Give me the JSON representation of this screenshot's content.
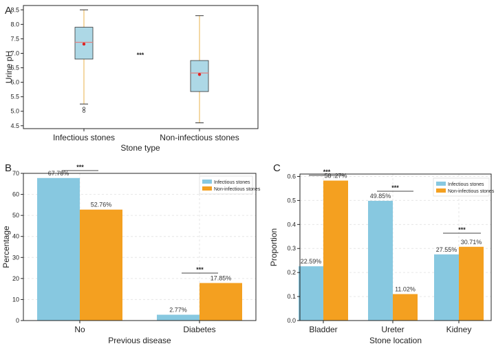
{
  "chart_data": [
    {
      "panel": "A",
      "type": "box",
      "xlabel": "Stone type",
      "ylabel": "Urine pH",
      "ylim": [
        4.4,
        8.65
      ],
      "yticks": [
        "4.5",
        "5.0",
        "5.5",
        "6.0",
        "6.5",
        "7.0",
        "7.5",
        "8.0",
        "8.5"
      ],
      "groups": [
        {
          "name": "Infectious stones",
          "whisker_low": 5.25,
          "q1": 6.8,
          "median": 7.38,
          "mean": 7.32,
          "q3": 7.9,
          "whisker_high": 8.5,
          "outliers": [
            5.1,
            5.0
          ]
        },
        {
          "name": "Non-infectious stones",
          "whisker_low": 4.6,
          "q1": 5.68,
          "median": 6.32,
          "mean": 6.27,
          "q3": 6.75,
          "whisker_high": 8.3,
          "outliers": []
        }
      ],
      "significance": "***",
      "colors": {
        "box": "#add8e6",
        "median": "#e08080",
        "mean": "#dd2222",
        "whisker": "#e8b24a"
      }
    },
    {
      "panel": "B",
      "type": "bar",
      "categories": [
        "No",
        "Diabetes"
      ],
      "series": [
        {
          "name": "Infectious stones",
          "values": [
            67.78,
            2.77
          ],
          "labels": [
            "67.78%",
            "2.77%"
          ],
          "color": "#87c8e0"
        },
        {
          "name": "Non-infectious stones",
          "values": [
            52.76,
            17.85
          ],
          "labels": [
            "52.76%",
            "17.85%"
          ],
          "color": "#f4a020"
        }
      ],
      "xlabel": "Previous disease",
      "ylabel": "Percentage",
      "ylim": [
        0,
        70
      ],
      "yticks": [
        "0",
        "10",
        "20",
        "30",
        "40",
        "50",
        "60",
        "70"
      ],
      "significance": [
        "***",
        "***"
      ],
      "legend": "top-right"
    },
    {
      "panel": "C",
      "type": "bar",
      "categories": [
        "Bladder",
        "Ureter",
        "Kidney"
      ],
      "series": [
        {
          "name": "Infectious stones",
          "values": [
            0.2259,
            0.4985,
            0.2755
          ],
          "labels": [
            "22.59%",
            "49.85%",
            "27.55%"
          ],
          "color": "#87c8e0"
        },
        {
          "name": "Non-infectious stones",
          "values": [
            0.5827,
            0.1102,
            0.3071
          ],
          "labels": [
            "58 .27%",
            "11.02%",
            "30.71%"
          ],
          "color": "#f4a020"
        }
      ],
      "xlabel": "Stone location",
      "ylabel": "Proportion",
      "ylim": [
        0,
        0.61
      ],
      "yticks": [
        "0.0",
        "0.1",
        "0.2",
        "0.3",
        "0.4",
        "0.5",
        "0.6"
      ],
      "significance": [
        "***",
        "***",
        "***"
      ],
      "legend": "top-right"
    }
  ]
}
